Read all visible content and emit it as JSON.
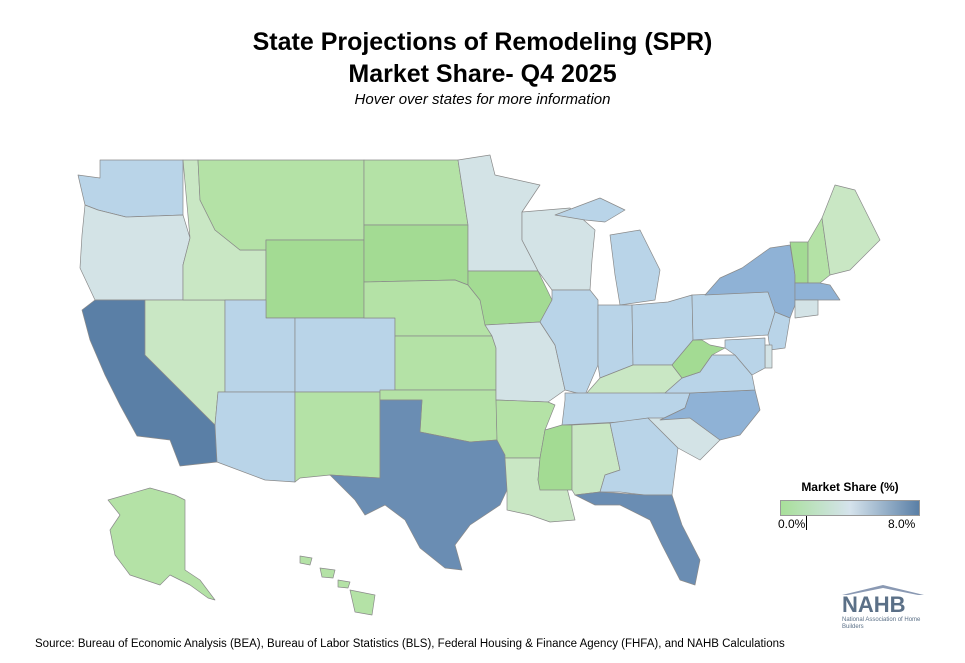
{
  "header": {
    "title_line1": "State Projections of Remodeling (SPR)",
    "title_line2": "Market Share- Q4 2025",
    "subtitle": "Hover over states for more information"
  },
  "legend": {
    "title": "Market Share (%)",
    "min_label": "0.0%",
    "max_label": "8.0%",
    "color_low": "#a8e09a",
    "color_mid": "#d5e3ec",
    "color_high": "#5a7fa6"
  },
  "map_colors": {
    "deep": "#5a7fa6",
    "dark": "#6a8db3",
    "mid_blue": "#8fb2d6",
    "light_blue": "#b9d4e8",
    "pale": "#d3e3e6",
    "pale_green": "#c9e7c4",
    "light_green": "#b4e2a6",
    "green": "#a3db93"
  },
  "states": [
    {
      "id": "WA",
      "level": "light_blue"
    },
    {
      "id": "OR",
      "level": "pale"
    },
    {
      "id": "CA",
      "level": "deep"
    },
    {
      "id": "NV",
      "level": "pale_green"
    },
    {
      "id": "ID",
      "level": "pale_green"
    },
    {
      "id": "MT",
      "level": "light_green"
    },
    {
      "id": "WY",
      "level": "green"
    },
    {
      "id": "UT",
      "level": "light_blue"
    },
    {
      "id": "AZ",
      "level": "light_blue"
    },
    {
      "id": "CO",
      "level": "light_blue"
    },
    {
      "id": "NM",
      "level": "light_green"
    },
    {
      "id": "ND",
      "level": "light_green"
    },
    {
      "id": "SD",
      "level": "green"
    },
    {
      "id": "NE",
      "level": "light_green"
    },
    {
      "id": "KS",
      "level": "light_green"
    },
    {
      "id": "OK",
      "level": "light_green"
    },
    {
      "id": "TX",
      "level": "dark"
    },
    {
      "id": "MN",
      "level": "pale"
    },
    {
      "id": "IA",
      "level": "green"
    },
    {
      "id": "MO",
      "level": "pale"
    },
    {
      "id": "AR",
      "level": "light_green"
    },
    {
      "id": "LA",
      "level": "pale_green"
    },
    {
      "id": "WI",
      "level": "pale"
    },
    {
      "id": "IL",
      "level": "light_blue"
    },
    {
      "id": "MI",
      "level": "light_blue"
    },
    {
      "id": "IN",
      "level": "light_blue"
    },
    {
      "id": "OH",
      "level": "light_blue"
    },
    {
      "id": "KY",
      "level": "pale_green"
    },
    {
      "id": "TN",
      "level": "light_blue"
    },
    {
      "id": "MS",
      "level": "green"
    },
    {
      "id": "AL",
      "level": "pale_green"
    },
    {
      "id": "GA",
      "level": "light_blue"
    },
    {
      "id": "FL",
      "level": "dark"
    },
    {
      "id": "SC",
      "level": "pale"
    },
    {
      "id": "NC",
      "level": "mid_blue"
    },
    {
      "id": "VA",
      "level": "light_blue"
    },
    {
      "id": "WV",
      "level": "green"
    },
    {
      "id": "PA",
      "level": "light_blue"
    },
    {
      "id": "NY",
      "level": "mid_blue"
    },
    {
      "id": "VT",
      "level": "green"
    },
    {
      "id": "NH",
      "level": "light_green"
    },
    {
      "id": "ME",
      "level": "pale_green"
    },
    {
      "id": "MA",
      "level": "mid_blue"
    },
    {
      "id": "CT",
      "level": "pale"
    },
    {
      "id": "NJ",
      "level": "light_blue"
    },
    {
      "id": "DE",
      "level": "pale"
    },
    {
      "id": "MD",
      "level": "light_blue"
    },
    {
      "id": "AK",
      "level": "light_green"
    },
    {
      "id": "HI",
      "level": "light_green"
    }
  ],
  "logo": {
    "text": "NAHB",
    "subtext": "National Association of Home Builders"
  },
  "footer": {
    "source": "Source: Bureau of Economic Analysis (BEA), Bureau of Labor Statistics (BLS), Federal Housing & Finance Agency (FHFA), and NAHB Calculations"
  }
}
